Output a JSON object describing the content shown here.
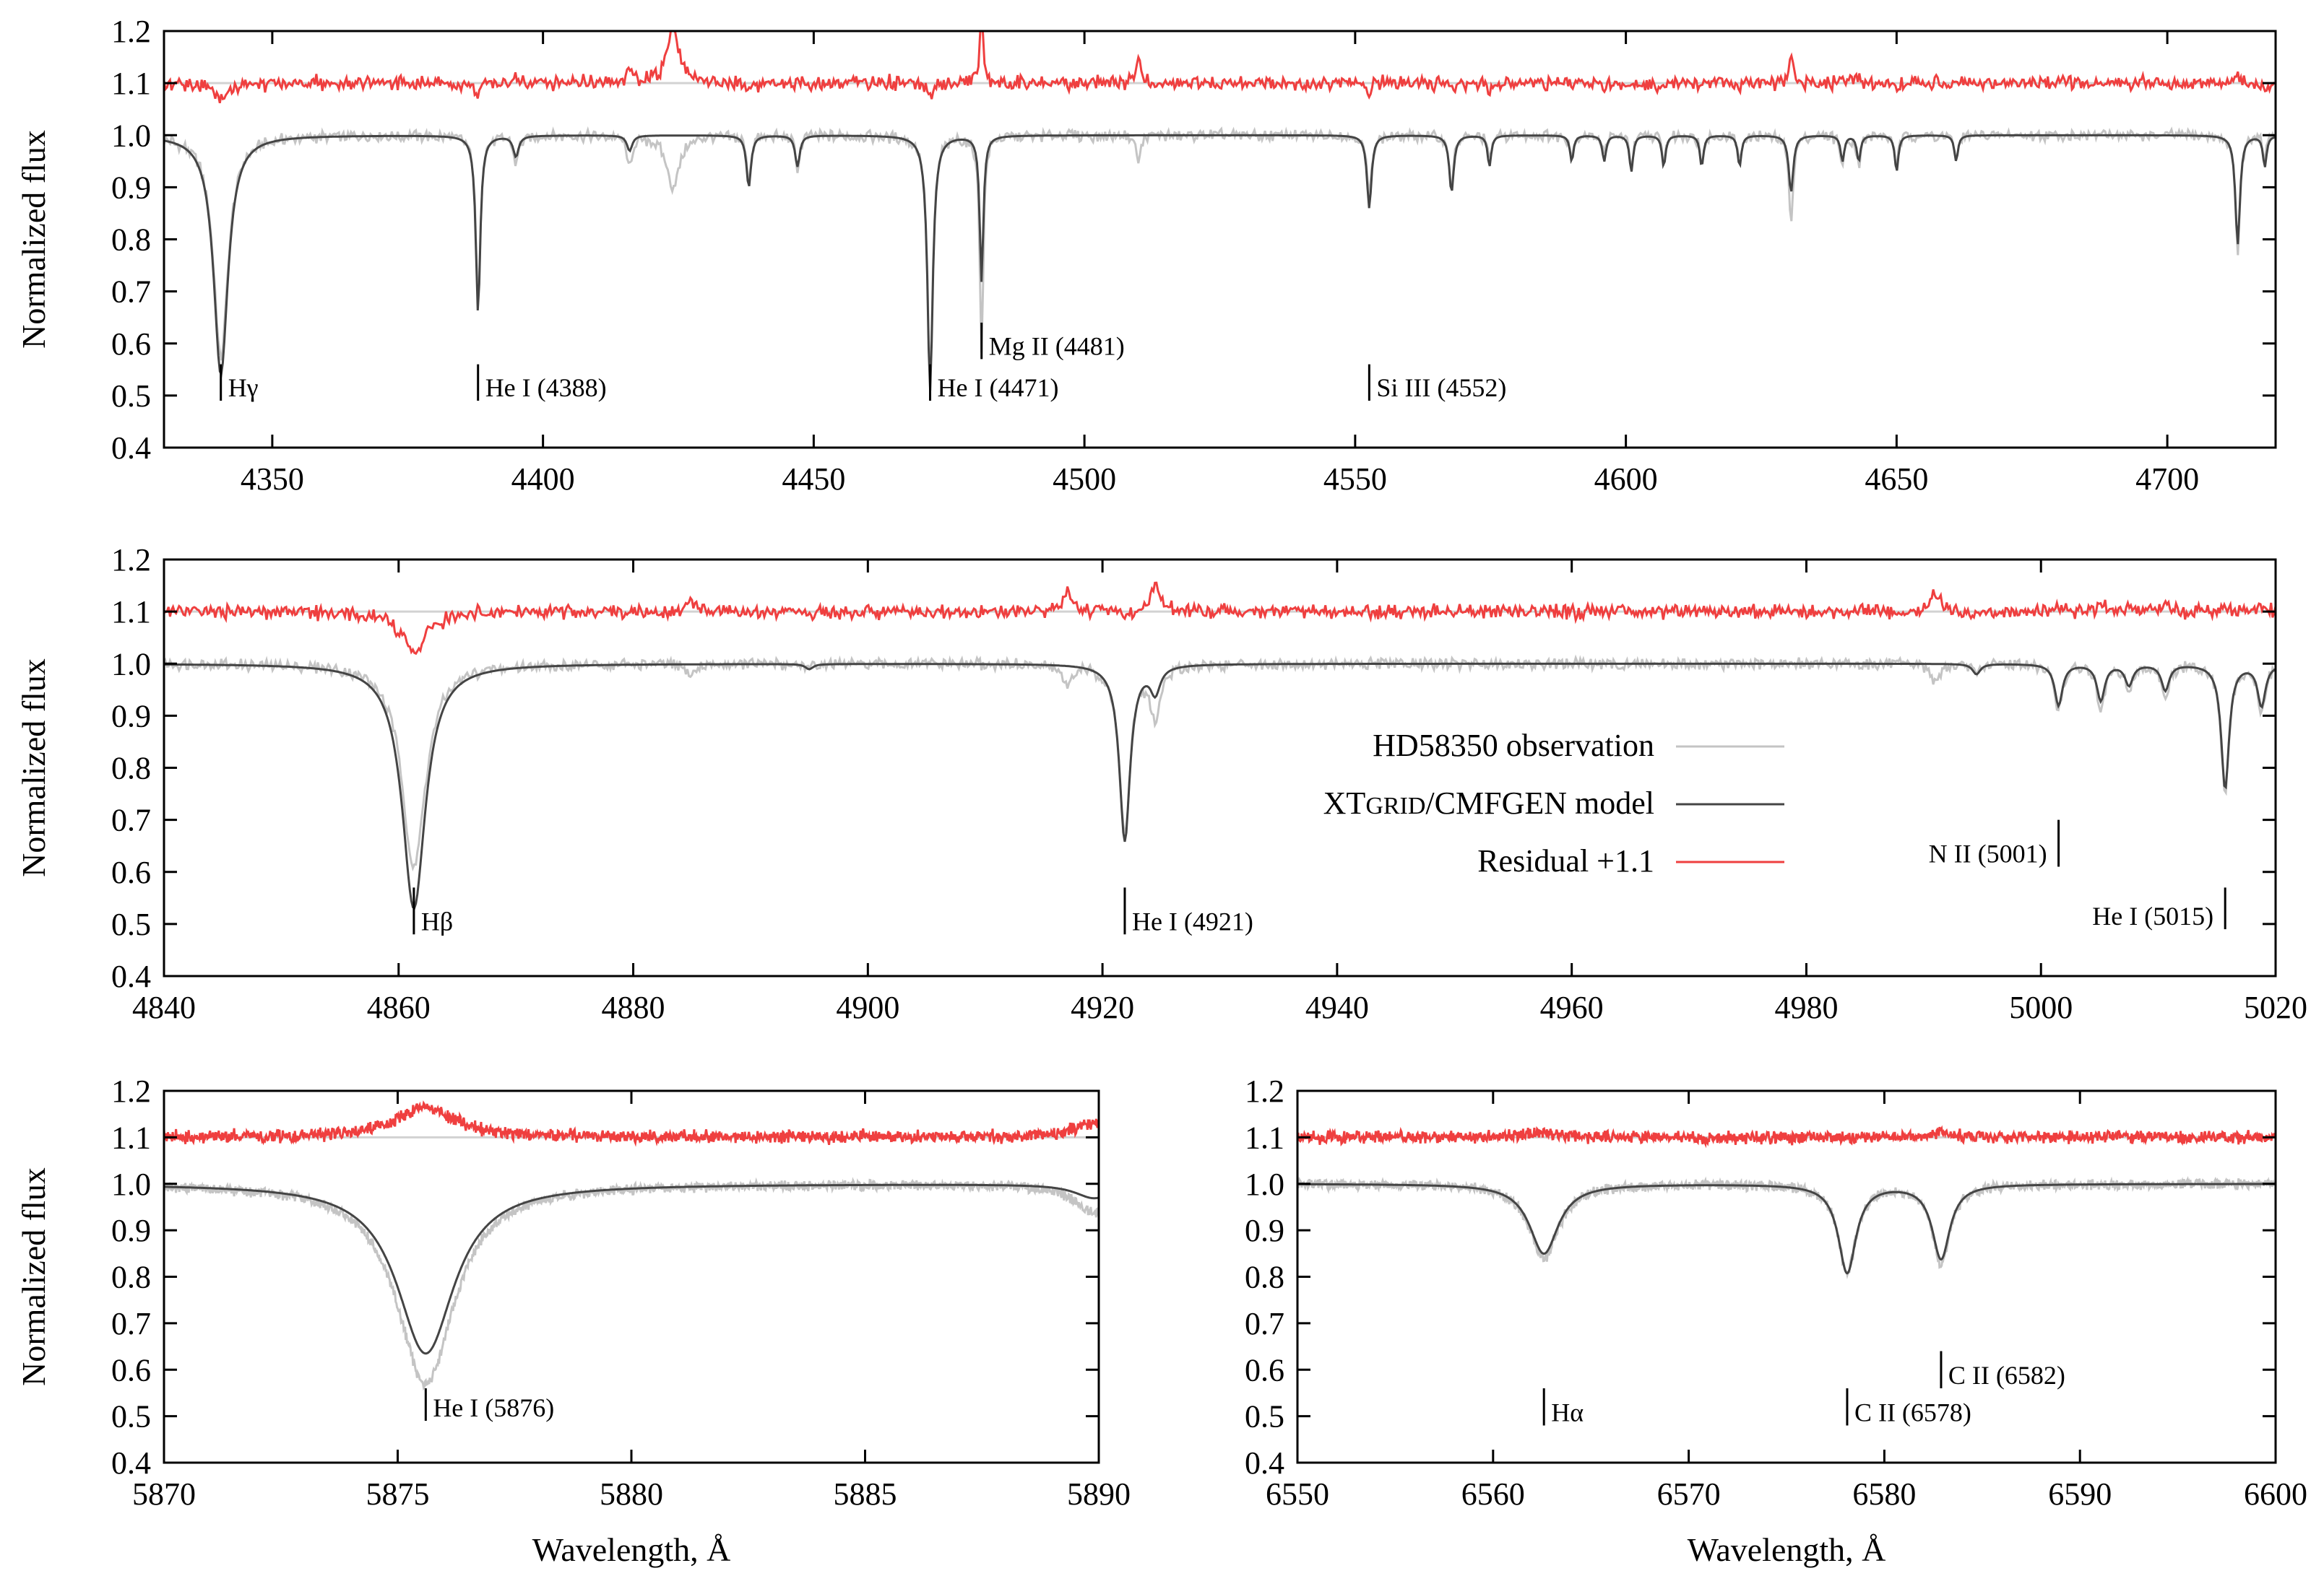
{
  "colors": {
    "observation": "#c4c4c4",
    "model": "#444444",
    "residual": "#ef3f3f",
    "reference_line": "#d2d2d2",
    "frame": "#000000"
  },
  "legend": {
    "placement": "center-right of second panel",
    "entries": [
      {
        "label": "HD58350 observation",
        "series": "observation"
      },
      {
        "label_main": "XT",
        "label_smallcaps": "GRID",
        "label_rest": "/CMFGEN model",
        "series": "model"
      },
      {
        "label": "Residual +1.1",
        "series": "residual"
      }
    ]
  },
  "chart_data": [
    {
      "id": "panel-4330-4720",
      "type": "line",
      "xlabel": "",
      "ylabel": "Normalized flux",
      "xlim": [
        4330,
        4720
      ],
      "ylim": [
        0.4,
        1.2
      ],
      "xticks": [
        4350,
        4400,
        4450,
        4500,
        4550,
        4600,
        4650,
        4700
      ],
      "yticks": [
        0.4,
        0.5,
        0.6,
        0.7,
        0.8,
        0.9,
        1.0,
        1.1,
        1.2
      ],
      "reference_line": 1.1,
      "residual_offset": 1.1,
      "lines": [
        {
          "center": 4340.5,
          "model_depth": 0.46,
          "obs_depth": 0.43,
          "width": 1.6
        },
        {
          "center": 4388,
          "model_depth": 0.34,
          "obs_depth": 0.32,
          "width": 0.5
        },
        {
          "center": 4395,
          "model_depth": 0.04,
          "obs_depth": 0.05,
          "width": 0.6
        },
        {
          "center": 4416,
          "model_depth": 0.03,
          "obs_depth": 0.06,
          "width": 0.6
        },
        {
          "center": 4424,
          "model_depth": 0.0,
          "obs_depth": 0.1,
          "width": 1.4
        },
        {
          "center": 4438,
          "model_depth": 0.1,
          "obs_depth": 0.08,
          "width": 0.5
        },
        {
          "center": 4447,
          "model_depth": 0.06,
          "obs_depth": 0.06,
          "width": 0.5
        },
        {
          "center": 4471.5,
          "model_depth": 0.49,
          "obs_depth": 0.47,
          "width": 0.6
        },
        {
          "center": 4481,
          "model_depth": 0.28,
          "obs_depth": 0.41,
          "width": 0.4
        },
        {
          "center": 4510,
          "model_depth": 0.0,
          "obs_depth": 0.05,
          "width": 0.5
        },
        {
          "center": 4552.6,
          "model_depth": 0.14,
          "obs_depth": 0.12,
          "width": 0.5
        },
        {
          "center": 4567.8,
          "model_depth": 0.11,
          "obs_depth": 0.1,
          "width": 0.5
        },
        {
          "center": 4574.8,
          "model_depth": 0.06,
          "obs_depth": 0.05,
          "width": 0.4
        },
        {
          "center": 4590,
          "model_depth": 0.05,
          "obs_depth": 0.04,
          "width": 0.4
        },
        {
          "center": 4596,
          "model_depth": 0.05,
          "obs_depth": 0.04,
          "width": 0.4
        },
        {
          "center": 4601,
          "model_depth": 0.07,
          "obs_depth": 0.06,
          "width": 0.4
        },
        {
          "center": 4607,
          "model_depth": 0.06,
          "obs_depth": 0.05,
          "width": 0.4
        },
        {
          "center": 4614,
          "model_depth": 0.06,
          "obs_depth": 0.05,
          "width": 0.4
        },
        {
          "center": 4621,
          "model_depth": 0.06,
          "obs_depth": 0.05,
          "width": 0.4
        },
        {
          "center": 4630.5,
          "model_depth": 0.11,
          "obs_depth": 0.16,
          "width": 0.5
        },
        {
          "center": 4640,
          "model_depth": 0.05,
          "obs_depth": 0.06,
          "width": 0.4
        },
        {
          "center": 4643,
          "model_depth": 0.05,
          "obs_depth": 0.06,
          "width": 0.4
        },
        {
          "center": 4650,
          "model_depth": 0.07,
          "obs_depth": 0.06,
          "width": 0.4
        },
        {
          "center": 4661,
          "model_depth": 0.05,
          "obs_depth": 0.05,
          "width": 0.4
        },
        {
          "center": 4713,
          "model_depth": 0.21,
          "obs_depth": 0.22,
          "width": 0.5
        },
        {
          "center": 4718,
          "model_depth": 0.06,
          "obs_depth": 0.04,
          "width": 0.4
        }
      ],
      "annotations": [
        {
          "label": "Hγ",
          "x": 4340.5,
          "y_low": 0.49,
          "y_high": 0.56
        },
        {
          "label": "He I (4388)",
          "x": 4388,
          "y_low": 0.49,
          "y_high": 0.56
        },
        {
          "label": "He I (4471)",
          "x": 4471.5,
          "y_low": 0.49,
          "y_high": 0.56
        },
        {
          "label": "Mg II (4481)",
          "x": 4481,
          "y_low": 0.57,
          "y_high": 0.64
        },
        {
          "label": "Si III (4552)",
          "x": 4552.6,
          "y_low": 0.49,
          "y_high": 0.56
        }
      ]
    },
    {
      "id": "panel-4840-5020",
      "type": "line",
      "xlabel": "",
      "ylabel": "Normalized flux",
      "xlim": [
        4840,
        5020
      ],
      "ylim": [
        0.4,
        1.2
      ],
      "xticks": [
        4840,
        4860,
        4880,
        4900,
        4920,
        4940,
        4960,
        4980,
        5000,
        5020
      ],
      "yticks": [
        0.4,
        0.5,
        0.6,
        0.7,
        0.8,
        0.9,
        1.0,
        1.1,
        1.2
      ],
      "reference_line": 1.1,
      "residual_offset": 1.1,
      "lines": [
        {
          "center": 4861.3,
          "model_depth": 0.47,
          "obs_depth": 0.39,
          "width": 1.2
        },
        {
          "center": 4885,
          "model_depth": 0.0,
          "obs_depth": 0.02,
          "width": 0.5
        },
        {
          "center": 4895,
          "model_depth": 0.01,
          "obs_depth": 0.01,
          "width": 0.4
        },
        {
          "center": 4917,
          "model_depth": 0.0,
          "obs_depth": 0.04,
          "width": 0.5
        },
        {
          "center": 4921.9,
          "model_depth": 0.34,
          "obs_depth": 0.33,
          "width": 0.55
        },
        {
          "center": 4924.5,
          "model_depth": 0.05,
          "obs_depth": 0.1,
          "width": 0.5
        },
        {
          "center": 4991,
          "model_depth": 0.0,
          "obs_depth": 0.04,
          "width": 0.4
        },
        {
          "center": 4994.5,
          "model_depth": 0.02,
          "obs_depth": 0.02,
          "width": 0.4
        },
        {
          "center": 5001.5,
          "model_depth": 0.08,
          "obs_depth": 0.09,
          "width": 0.4
        },
        {
          "center": 5005.1,
          "model_depth": 0.07,
          "obs_depth": 0.09,
          "width": 0.4
        },
        {
          "center": 5007.5,
          "model_depth": 0.04,
          "obs_depth": 0.05,
          "width": 0.4
        },
        {
          "center": 5010.6,
          "model_depth": 0.05,
          "obs_depth": 0.06,
          "width": 0.4
        },
        {
          "center": 5015.7,
          "model_depth": 0.24,
          "obs_depth": 0.25,
          "width": 0.4
        },
        {
          "center": 5018.8,
          "model_depth": 0.08,
          "obs_depth": 0.09,
          "width": 0.4
        }
      ],
      "annotations": [
        {
          "label": "Hβ",
          "x": 4861.3,
          "y_low": 0.48,
          "y_high": 0.57
        },
        {
          "label": "He I (4921)",
          "x": 4921.9,
          "y_low": 0.48,
          "y_high": 0.57
        },
        {
          "label": "N II (5001)",
          "x": 5001.5,
          "y_low": 0.61,
          "y_high": 0.7
        },
        {
          "label": "He I (5015)",
          "x": 5015.7,
          "y_low": 0.49,
          "y_high": 0.57
        }
      ]
    },
    {
      "id": "panel-5870-5890",
      "type": "line",
      "xlabel": "Wavelength, Å",
      "ylabel": "Normalized flux",
      "xlim": [
        5870,
        5890
      ],
      "ylim": [
        0.4,
        1.2
      ],
      "xticks": [
        5870,
        5875,
        5880,
        5885,
        5890
      ],
      "yticks": [
        0.4,
        0.5,
        0.6,
        0.7,
        0.8,
        0.9,
        1.0,
        1.1,
        1.2
      ],
      "reference_line": 1.1,
      "residual_offset": 1.1,
      "lines": [
        {
          "center": 5875.6,
          "model_depth": 0.365,
          "obs_depth": 0.43,
          "width": 0.75
        },
        {
          "center": 5889.9,
          "model_depth": 0.03,
          "obs_depth": 0.06,
          "width": 0.5
        }
      ],
      "annotations": [
        {
          "label": "He I (5876)",
          "x": 5875.6,
          "y_low": 0.49,
          "y_high": 0.56
        }
      ]
    },
    {
      "id": "panel-6550-6600",
      "type": "line",
      "xlabel": "Wavelength, Å",
      "ylabel": "",
      "xlim": [
        6550,
        6600
      ],
      "ylim": [
        0.4,
        1.2
      ],
      "xticks": [
        6550,
        6560,
        6570,
        6580,
        6590,
        6600
      ],
      "yticks": [
        0.4,
        0.5,
        0.6,
        0.7,
        0.8,
        0.9,
        1.0,
        1.1,
        1.2
      ],
      "reference_line": 1.1,
      "residual_offset": 1.1,
      "lines": [
        {
          "center": 6562.6,
          "model_depth": 0.15,
          "obs_depth": 0.16,
          "width": 0.9
        },
        {
          "center": 6578.1,
          "model_depth": 0.19,
          "obs_depth": 0.19,
          "width": 0.55
        },
        {
          "center": 6582.9,
          "model_depth": 0.16,
          "obs_depth": 0.17,
          "width": 0.55
        }
      ],
      "annotations": [
        {
          "label": "Hα",
          "x": 6562.6,
          "y_low": 0.48,
          "y_high": 0.56
        },
        {
          "label": "C II (6578)",
          "x": 6578.1,
          "y_low": 0.48,
          "y_high": 0.56
        },
        {
          "label": "C II (6582)",
          "x": 6582.9,
          "y_low": 0.56,
          "y_high": 0.64
        }
      ]
    }
  ]
}
